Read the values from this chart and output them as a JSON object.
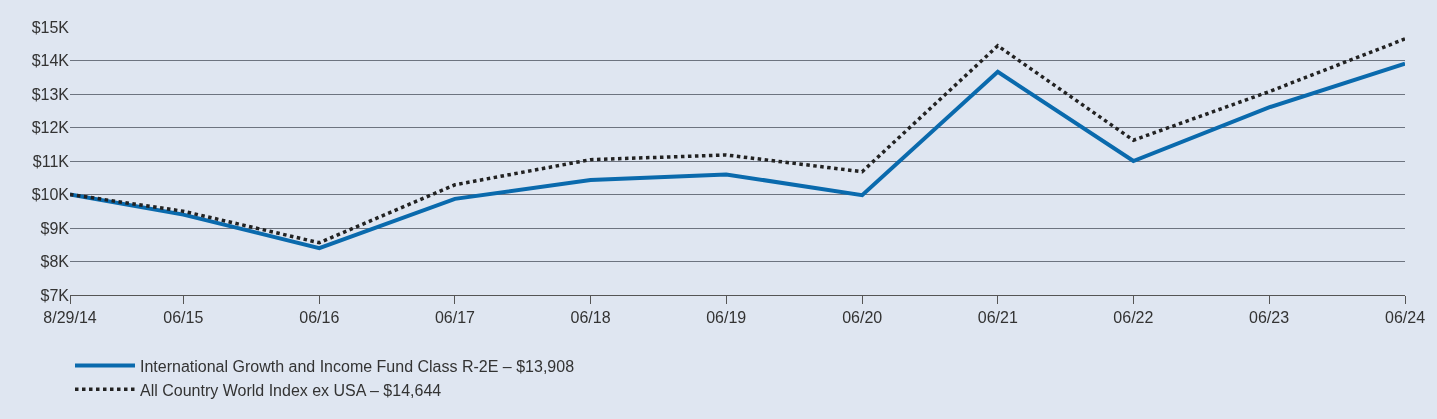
{
  "chart_data": {
    "type": "line",
    "x": [
      "2014-08-29",
      "2015-06-30",
      "2016-06-30",
      "2017-06-30",
      "2018-06-30",
      "2019-06-30",
      "2020-06-30",
      "2021-06-30",
      "2022-06-30",
      "2023-06-30",
      "2024-06-30"
    ],
    "series": [
      {
        "name": "International Growth and Income Fund Class R-2E – $13,908",
        "color": "#0a6aad",
        "line_style": "solid",
        "values": [
          10000,
          9400,
          8400,
          9870,
          10430,
          10600,
          9980,
          13660,
          11000,
          12600,
          13908
        ]
      },
      {
        "name": "All Country World Index ex USA – $14,644",
        "color": "#222222",
        "line_style": "dotted",
        "values": [
          10000,
          9500,
          8560,
          10290,
          11040,
          11180,
          10680,
          14440,
          11620,
          13070,
          14644
        ]
      }
    ],
    "xlim": [
      "2014-08-29",
      "2024-06-30"
    ],
    "xticks": [
      {
        "value": "2014-08-29",
        "label": "8/29/14"
      },
      {
        "value": "2015-06-30",
        "label": "06/15"
      },
      {
        "value": "2016-06-30",
        "label": "06/16"
      },
      {
        "value": "2017-06-30",
        "label": "06/17"
      },
      {
        "value": "2018-06-30",
        "label": "06/18"
      },
      {
        "value": "2019-06-30",
        "label": "06/19"
      },
      {
        "value": "2020-06-30",
        "label": "06/20"
      },
      {
        "value": "2021-06-30",
        "label": "06/21"
      },
      {
        "value": "2022-06-30",
        "label": "06/22"
      },
      {
        "value": "2023-06-30",
        "label": "06/23"
      },
      {
        "value": "2024-06-30",
        "label": "06/24"
      }
    ],
    "ylim": [
      7000,
      15000
    ],
    "yticks": [
      {
        "value": 7000,
        "label": "$7K"
      },
      {
        "value": 8000,
        "label": "$8K"
      },
      {
        "value": 9000,
        "label": "$9K"
      },
      {
        "value": 10000,
        "label": "$10K"
      },
      {
        "value": 11000,
        "label": "$11K"
      },
      {
        "value": 12000,
        "label": "$12K"
      },
      {
        "value": 13000,
        "label": "$13K"
      },
      {
        "value": 14000,
        "label": "$14K"
      },
      {
        "value": 15000,
        "label": "$15K"
      }
    ],
    "grid": "y",
    "legend": "bottom",
    "marker": "none"
  }
}
